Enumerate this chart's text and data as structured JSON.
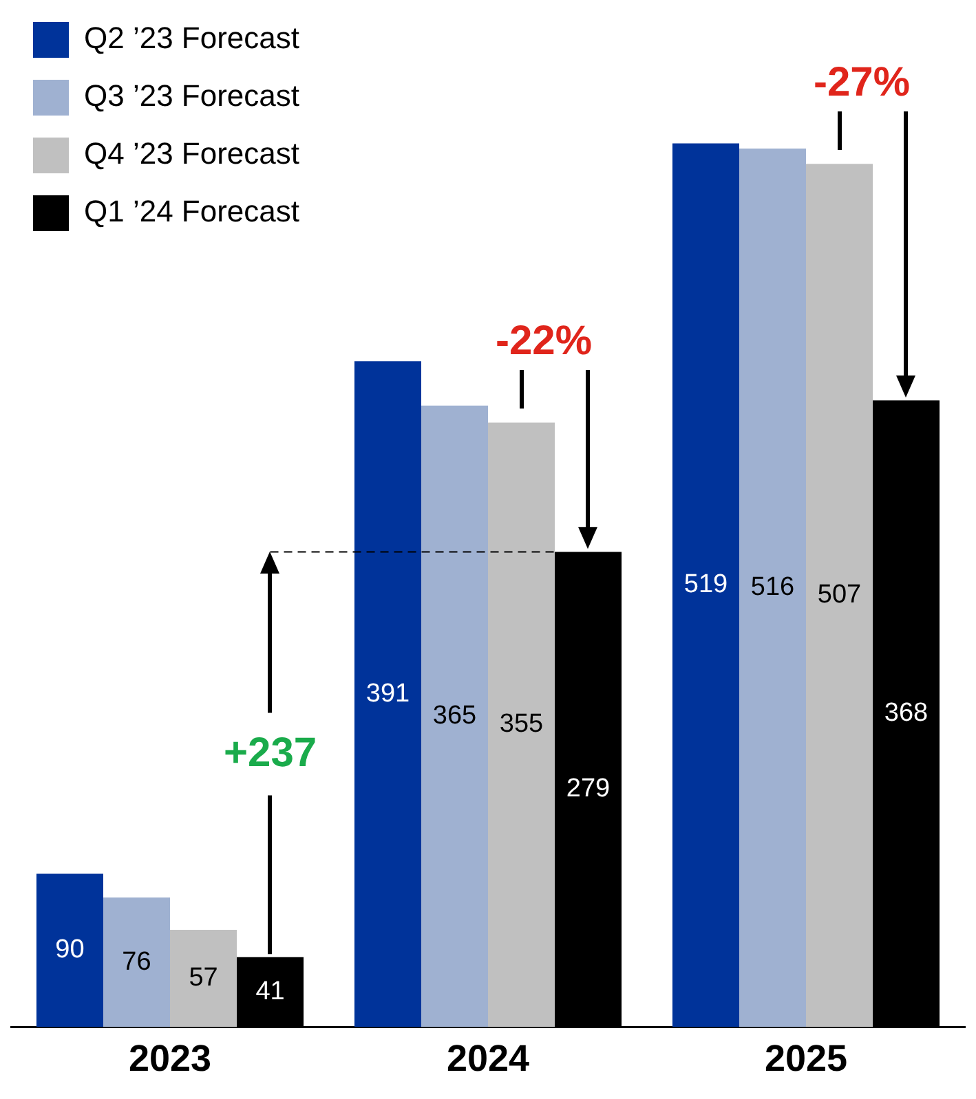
{
  "chart_data": {
    "type": "bar",
    "categories": [
      "2023",
      "2024",
      "2025"
    ],
    "series": [
      {
        "name": "Q2 ’23 Forecast",
        "color": "#00339a",
        "values": [
          90,
          391,
          519
        ]
      },
      {
        "name": "Q3 ’23 Forecast",
        "color": "#9fb1d1",
        "values": [
          76,
          365,
          516
        ]
      },
      {
        "name": "Q4 ’23 Forecast",
        "color": "#c0c0c0",
        "values": [
          57,
          355,
          507
        ]
      },
      {
        "name": "Q1 ’24 Forecast",
        "color": "#000000",
        "values": [
          41,
          279,
          368
        ]
      }
    ],
    "data_labels": true,
    "legend": "top left",
    "grid": false,
    "ref_lines": [
      {
        "axis": "y",
        "value": 279,
        "line_style": "dashed",
        "color": "#000000"
      }
    ],
    "annotations": [
      "+237",
      "-22%",
      "-27%"
    ]
  }
}
